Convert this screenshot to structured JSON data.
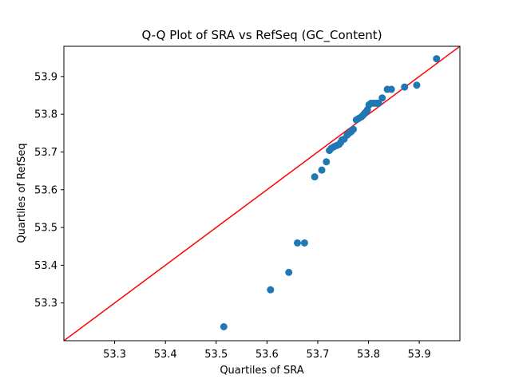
{
  "chart_data": {
    "type": "scatter",
    "title": "Q-Q Plot of SRA vs RefSeq (GC_Content)",
    "xlabel": "Quartiles of SRA",
    "ylabel": "Quartiles of RefSeq",
    "xlim": [
      53.2,
      53.98
    ],
    "ylim": [
      53.2,
      53.98
    ],
    "xticks": [
      "53.3",
      "53.4",
      "53.5",
      "53.6",
      "53.7",
      "53.8",
      "53.9"
    ],
    "yticks": [
      "53.3",
      "53.4",
      "53.5",
      "53.6",
      "53.7",
      "53.8",
      "53.9"
    ],
    "grid": false,
    "point_color": "#1f77b4",
    "line_color": "#ff0000",
    "reference_line": {
      "type": "y=x"
    },
    "points": [
      {
        "x": 53.515,
        "y": 53.237
      },
      {
        "x": 53.607,
        "y": 53.335
      },
      {
        "x": 53.643,
        "y": 53.381
      },
      {
        "x": 53.66,
        "y": 53.459
      },
      {
        "x": 53.674,
        "y": 53.459
      },
      {
        "x": 53.694,
        "y": 53.634
      },
      {
        "x": 53.708,
        "y": 53.652
      },
      {
        "x": 53.717,
        "y": 53.674
      },
      {
        "x": 53.723,
        "y": 53.704
      },
      {
        "x": 53.727,
        "y": 53.71
      },
      {
        "x": 53.732,
        "y": 53.714
      },
      {
        "x": 53.737,
        "y": 53.717
      },
      {
        "x": 53.742,
        "y": 53.72
      },
      {
        "x": 53.745,
        "y": 53.725
      },
      {
        "x": 53.748,
        "y": 53.732
      },
      {
        "x": 53.752,
        "y": 53.734
      },
      {
        "x": 53.758,
        "y": 53.745
      },
      {
        "x": 53.762,
        "y": 53.75
      },
      {
        "x": 53.766,
        "y": 53.754
      },
      {
        "x": 53.77,
        "y": 53.76
      },
      {
        "x": 53.776,
        "y": 53.785
      },
      {
        "x": 53.781,
        "y": 53.789
      },
      {
        "x": 53.786,
        "y": 53.793
      },
      {
        "x": 53.789,
        "y": 53.797
      },
      {
        "x": 53.792,
        "y": 53.802
      },
      {
        "x": 53.795,
        "y": 53.806
      },
      {
        "x": 53.798,
        "y": 53.812
      },
      {
        "x": 53.801,
        "y": 53.825
      },
      {
        "x": 53.805,
        "y": 53.829
      },
      {
        "x": 53.81,
        "y": 53.829
      },
      {
        "x": 53.816,
        "y": 53.829
      },
      {
        "x": 53.82,
        "y": 53.829
      },
      {
        "x": 53.827,
        "y": 53.843
      },
      {
        "x": 53.837,
        "y": 53.866
      },
      {
        "x": 53.845,
        "y": 53.866
      },
      {
        "x": 53.871,
        "y": 53.872
      },
      {
        "x": 53.895,
        "y": 53.877
      },
      {
        "x": 53.934,
        "y": 53.947
      }
    ]
  }
}
